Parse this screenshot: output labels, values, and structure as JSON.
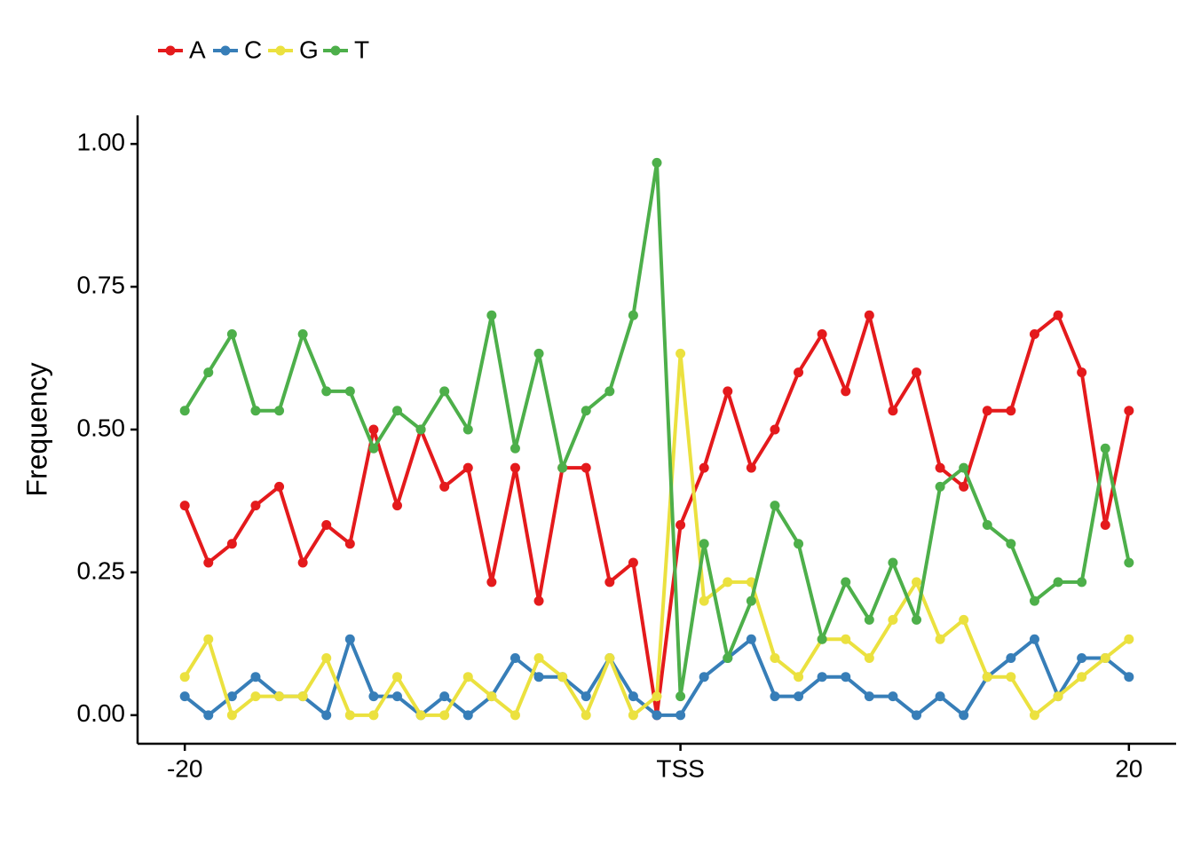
{
  "chart_data": {
    "type": "line",
    "y_label": "Frequency",
    "x": [
      -20,
      -19,
      -18,
      -17,
      -16,
      -15,
      -14,
      -13,
      -12,
      -11,
      -10,
      -9,
      -8,
      -7,
      -6,
      -5,
      -4,
      -3,
      -2,
      -1,
      0,
      1,
      2,
      3,
      4,
      5,
      6,
      7,
      8,
      9,
      10,
      11,
      12,
      13,
      14,
      15,
      16,
      17,
      18,
      19,
      20
    ],
    "series": [
      {
        "name": "A",
        "color": "#e41a1c",
        "values": [
          0.367,
          0.267,
          0.3,
          0.367,
          0.4,
          0.267,
          0.333,
          0.3,
          0.5,
          0.367,
          0.5,
          0.4,
          0.433,
          0.233,
          0.433,
          0.2,
          0.433,
          0.433,
          0.233,
          0.267,
          0,
          0.333,
          0.433,
          0.567,
          0.433,
          0.5,
          0.6,
          0.667,
          0.567,
          0.7,
          0.533,
          0.6,
          0.433,
          0.4,
          0.533,
          0.533,
          0.667,
          0.7,
          0.6,
          0.333,
          0.533
        ]
      },
      {
        "name": "C",
        "color": "#377eb8",
        "values": [
          0.033,
          0,
          0.033,
          0.067,
          0.033,
          0.033,
          0,
          0.133,
          0.033,
          0.033,
          0,
          0.033,
          0,
          0.033,
          0.1,
          0.067,
          0.067,
          0.033,
          0.1,
          0.033,
          0,
          0,
          0.067,
          0.1,
          0.133,
          0.033,
          0.033,
          0.067,
          0.067,
          0.033,
          0.033,
          0,
          0.033,
          0,
          0.067,
          0.1,
          0.133,
          0.033,
          0.1,
          0.1,
          0.067
        ]
      },
      {
        "name": "G",
        "color": "#ebe13f",
        "values": [
          0.067,
          0.133,
          0,
          0.033,
          0.033,
          0.033,
          0.1,
          0,
          0,
          0.067,
          0,
          0,
          0.067,
          0.033,
          0,
          0.1,
          0.067,
          0,
          0.1,
          0,
          0.033,
          0.633,
          0.2,
          0.233,
          0.233,
          0.1,
          0.067,
          0.133,
          0.133,
          0.1,
          0.167,
          0.233,
          0.133,
          0.167,
          0.067,
          0.067,
          0,
          0.033,
          0.067,
          0.1,
          0.133
        ]
      },
      {
        "name": "T",
        "color": "#4daf4a",
        "values": [
          0.533,
          0.6,
          0.667,
          0.533,
          0.533,
          0.667,
          0.567,
          0.567,
          0.467,
          0.533,
          0.5,
          0.567,
          0.5,
          0.7,
          0.467,
          0.633,
          0.433,
          0.533,
          0.567,
          0.7,
          0.967,
          0.033,
          0.3,
          0.1,
          0.2,
          0.367,
          0.3,
          0.133,
          0.233,
          0.167,
          0.267,
          0.167,
          0.4,
          0.433,
          0.333,
          0.3,
          0.2,
          0.233,
          0.233,
          0.467,
          0.267
        ]
      }
    ],
    "xlim": [
      -22,
      22
    ],
    "xticks": [
      -20,
      {
        "value": 1,
        "label": "TSS"
      },
      20
    ],
    "ylim": [
      -0.05,
      1.05
    ],
    "yticks": [
      {
        "value": 0,
        "label": "0.00"
      },
      {
        "value": 0.25,
        "label": "0.25"
      },
      {
        "value": 0.5,
        "label": "0.50"
      },
      {
        "value": 0.75,
        "label": "0.75"
      },
      {
        "value": 1,
        "label": "1.00"
      }
    ],
    "legend": "top-left"
  }
}
